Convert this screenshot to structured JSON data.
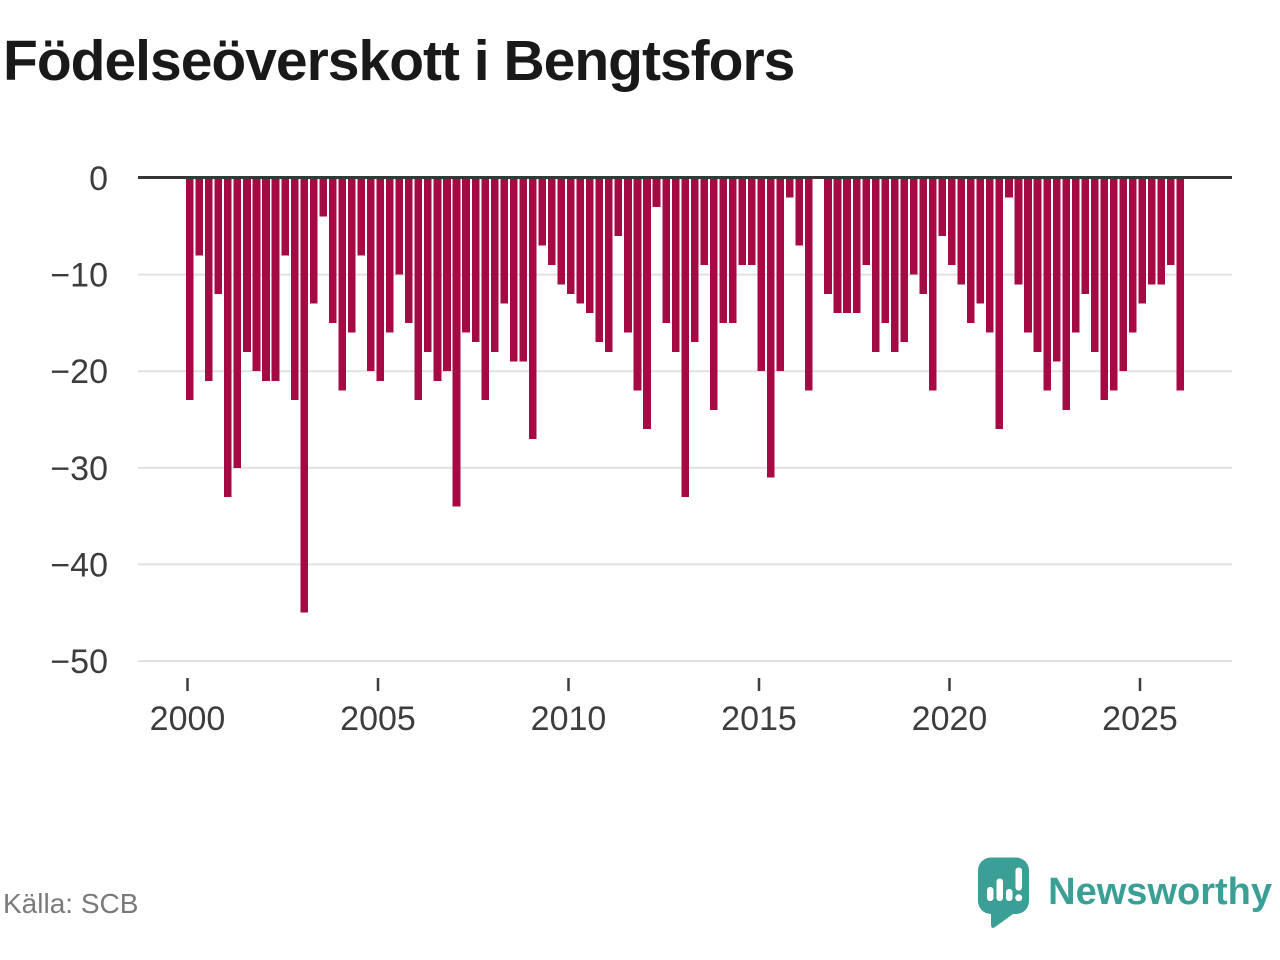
{
  "title": "Födelseöverskott i Bengtsfors",
  "source_label": "Källa: SCB",
  "brand_name": "Newsworthy",
  "colors": {
    "bar": "#a60a44",
    "axis_line": "#363636",
    "gridline": "#e1e1e1",
    "tick": "#3d3d3d",
    "axis_label": "#3d3d3d",
    "title_text": "#191919",
    "source_text": "#7a7a7a",
    "brand_teal": "#3aa096",
    "background": "#ffffff"
  },
  "chart_data": {
    "type": "bar",
    "title": "Födelseöverskott i Bengtsfors",
    "frequency": "quarterly",
    "start_period": "2000 Q1",
    "end_period": "2026 Q1",
    "xlabel": "",
    "ylabel": "",
    "ylim": [
      -50,
      0
    ],
    "grid": true,
    "legend": "none",
    "x_ticks": [
      2000,
      2005,
      2010,
      2015,
      2020,
      2025
    ],
    "x_tick_labels": [
      "2000",
      "2005",
      "2010",
      "2015",
      "2020",
      "2025"
    ],
    "y_ticks": [
      0,
      -10,
      -20,
      -30,
      -40,
      -50
    ],
    "y_tick_labels": [
      "0",
      "−10",
      "−20",
      "−30",
      "−40",
      "−50"
    ],
    "values": [
      -23,
      -8,
      -21,
      -12,
      -33,
      -30,
      -18,
      -20,
      -21,
      -21,
      -8,
      -23,
      -45,
      -13,
      -4,
      -15,
      -22,
      -16,
      -8,
      -20,
      -21,
      -16,
      -10,
      -15,
      -23,
      -18,
      -21,
      -20,
      -34,
      -16,
      -17,
      -23,
      -18,
      -13,
      -19,
      -19,
      -27,
      -7,
      -9,
      -11,
      -12,
      -13,
      -14,
      -17,
      -18,
      -6,
      -16,
      -22,
      -26,
      -3,
      -15,
      -18,
      -33,
      -17,
      -9,
      -24,
      -15,
      -15,
      -9,
      -9,
      -20,
      -31,
      -20,
      -2,
      -7,
      -22,
      0,
      -12,
      -14,
      -14,
      -14,
      -9,
      -18,
      -15,
      -18,
      -17,
      -10,
      -12,
      -22,
      -6,
      -9,
      -11,
      -15,
      -13,
      -16,
      -26,
      -2,
      -11,
      -16,
      -18,
      -22,
      -19,
      -24,
      -16,
      -12,
      -18,
      -23,
      -22,
      -20,
      -16,
      -13,
      -11,
      -11,
      -9,
      -22
    ]
  }
}
